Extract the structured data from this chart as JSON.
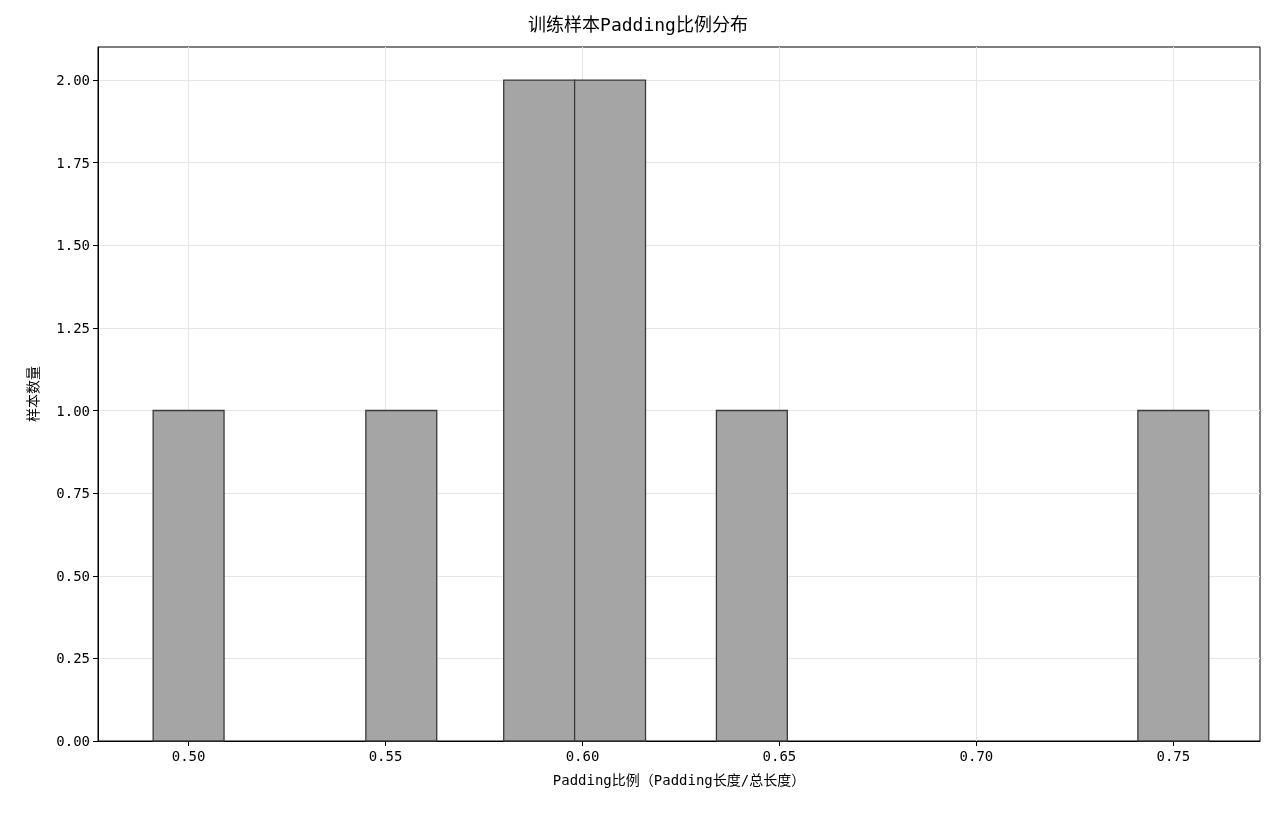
{
  "chart_data": {
    "type": "histogram",
    "title": "训练样本Padding比例分布",
    "xlabel": "Padding比例（Padding长度/总长度）",
    "ylabel": "样本数量",
    "bins": [
      0.491,
      0.509,
      0.545,
      0.563,
      0.58,
      0.598,
      0.616,
      0.634,
      0.652,
      0.741,
      0.759
    ],
    "values": [
      1,
      0,
      1,
      0,
      2,
      2,
      0,
      1,
      0,
      1
    ],
    "color": "#a5a5a5",
    "xlim": [
      0.477,
      0.772
    ],
    "xticks": [
      {
        "value": 0.5,
        "label": "0.50"
      },
      {
        "value": 0.55,
        "label": "0.55"
      },
      {
        "value": 0.6,
        "label": "0.60"
      },
      {
        "value": 0.65,
        "label": "0.65"
      },
      {
        "value": 0.7,
        "label": "0.70"
      },
      {
        "value": 0.75,
        "label": "0.75"
      }
    ],
    "ylim": [
      0,
      2.1
    ],
    "yticks": [
      {
        "value": 0,
        "label": "0.00"
      },
      {
        "value": 0.25,
        "label": "0.25"
      },
      {
        "value": 0.5,
        "label": "0.50"
      },
      {
        "value": 0.75,
        "label": "0.75"
      },
      {
        "value": 1,
        "label": "1.00"
      },
      {
        "value": 1.25,
        "label": "1.25"
      },
      {
        "value": 1.5,
        "label": "1.50"
      },
      {
        "value": 1.75,
        "label": "1.75"
      },
      {
        "value": 2,
        "label": "2.00"
      }
    ],
    "grid": true
  }
}
